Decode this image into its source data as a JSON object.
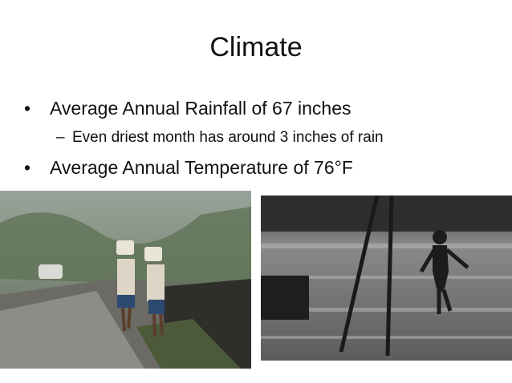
{
  "title": "Climate",
  "bullets": [
    {
      "text": "Average Annual Rainfall of 67 inches",
      "sub": [
        "Even driest month has around 3 inches of rain"
      ]
    },
    {
      "text": "Average Annual Temperature of 76°F"
    }
  ]
}
